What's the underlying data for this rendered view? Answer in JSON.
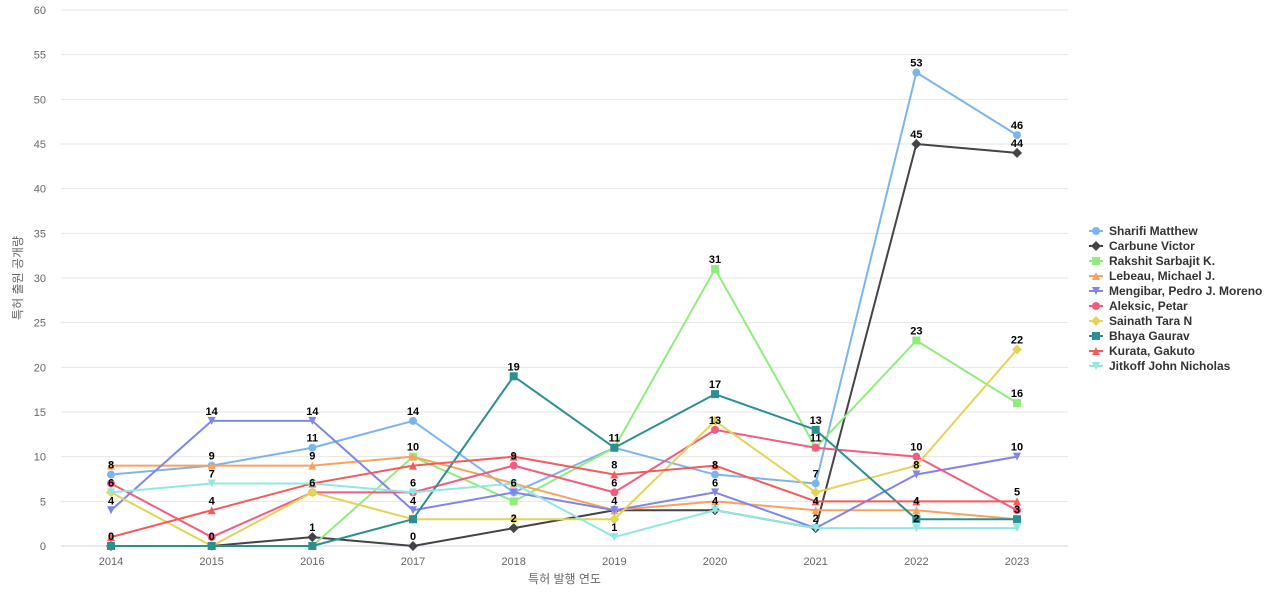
{
  "chart_data": {
    "type": "line",
    "title": "",
    "xlabel": "특허 발행 연도",
    "ylabel": "특허 출원 공개량",
    "x": [
      2014,
      2015,
      2016,
      2017,
      2018,
      2019,
      2020,
      2021,
      2022,
      2023
    ],
    "ylim": [
      0,
      60
    ],
    "yticks": [
      0,
      5,
      10,
      15,
      20,
      25,
      30,
      35,
      40,
      45,
      50,
      55,
      60
    ],
    "grid": true,
    "legend_position": "right",
    "series": [
      {
        "name": "Sharifi Matthew",
        "color": "#7cb5ec",
        "marker": "circle",
        "values": [
          8,
          9,
          11,
          14,
          6,
          11,
          8,
          7,
          53,
          46
        ]
      },
      {
        "name": "Carbune Victor",
        "color": "#434348",
        "marker": "diamond",
        "values": [
          0,
          0,
          1,
          0,
          2,
          4,
          4,
          2,
          45,
          44
        ]
      },
      {
        "name": "Rakshit Sarbajit K.",
        "color": "#90ed7d",
        "marker": "square",
        "values": [
          0,
          0,
          0,
          10,
          5,
          11,
          31,
          11,
          23,
          16
        ]
      },
      {
        "name": "Lebeau, Michael J.",
        "color": "#f7a35c",
        "marker": "triangle",
        "values": [
          9,
          9,
          9,
          10,
          7,
          4,
          5,
          4,
          4,
          3
        ]
      },
      {
        "name": "Mengibar, Pedro J. Moreno",
        "color": "#8085e9",
        "marker": "triangle-down",
        "values": [
          4,
          14,
          14,
          4,
          6,
          4,
          6,
          2,
          8,
          10
        ]
      },
      {
        "name": "Aleksic, Petar",
        "color": "#f15c80",
        "marker": "circle",
        "values": [
          7,
          1,
          6,
          6,
          9,
          6,
          13,
          11,
          10,
          4
        ]
      },
      {
        "name": "Sainath Tara N",
        "color": "#e4d354",
        "marker": "diamond",
        "values": [
          6,
          0,
          6,
          3,
          3,
          3,
          14,
          6,
          9,
          22
        ]
      },
      {
        "name": "Bhaya Gaurav",
        "color": "#2b908f",
        "marker": "square",
        "values": [
          0,
          0,
          0,
          3,
          19,
          11,
          17,
          13,
          3,
          3
        ]
      },
      {
        "name": "Kurata, Gakuto",
        "color": "#f45b5b",
        "marker": "triangle",
        "values": [
          1,
          4,
          7,
          9,
          10,
          8,
          9,
          5,
          5,
          5
        ]
      },
      {
        "name": "Jitkoff John Nicholas",
        "color": "#91e8e1",
        "marker": "triangle-down",
        "values": [
          6,
          7,
          7,
          6,
          7,
          1,
          4,
          2,
          2,
          2
        ]
      }
    ],
    "data_labels": [
      {
        "x": 2014,
        "y": 8,
        "text": "8"
      },
      {
        "x": 2014,
        "y": 6,
        "text": "6"
      },
      {
        "x": 2014,
        "y": 4,
        "text": "4"
      },
      {
        "x": 2014,
        "y": 0,
        "text": "0"
      },
      {
        "x": 2015,
        "y": 14,
        "text": "14"
      },
      {
        "x": 2015,
        "y": 9,
        "text": "9"
      },
      {
        "x": 2015,
        "y": 7,
        "text": "7"
      },
      {
        "x": 2015,
        "y": 4,
        "text": "4"
      },
      {
        "x": 2015,
        "y": 0,
        "text": "0"
      },
      {
        "x": 2016,
        "y": 14,
        "text": "14"
      },
      {
        "x": 2016,
        "y": 11,
        "text": "11"
      },
      {
        "x": 2016,
        "y": 9,
        "text": "9"
      },
      {
        "x": 2016,
        "y": 6,
        "text": "6"
      },
      {
        "x": 2016,
        "y": 1,
        "text": "1"
      },
      {
        "x": 2017,
        "y": 14,
        "text": "14"
      },
      {
        "x": 2017,
        "y": 10,
        "text": "10"
      },
      {
        "x": 2017,
        "y": 6,
        "text": "6"
      },
      {
        "x": 2017,
        "y": 4,
        "text": "4"
      },
      {
        "x": 2017,
        "y": 0,
        "text": "0"
      },
      {
        "x": 2018,
        "y": 19,
        "text": "19"
      },
      {
        "x": 2018,
        "y": 9,
        "text": "9"
      },
      {
        "x": 2018,
        "y": 6,
        "text": "6"
      },
      {
        "x": 2018,
        "y": 2,
        "text": "2"
      },
      {
        "x": 2019,
        "y": 11,
        "text": "11"
      },
      {
        "x": 2019,
        "y": 8,
        "text": "8"
      },
      {
        "x": 2019,
        "y": 6,
        "text": "6"
      },
      {
        "x": 2019,
        "y": 4,
        "text": "4"
      },
      {
        "x": 2019,
        "y": 1,
        "text": "1"
      },
      {
        "x": 2020,
        "y": 31,
        "text": "31"
      },
      {
        "x": 2020,
        "y": 17,
        "text": "17"
      },
      {
        "x": 2020,
        "y": 13,
        "text": "13"
      },
      {
        "x": 2020,
        "y": 8,
        "text": "8"
      },
      {
        "x": 2020,
        "y": 6,
        "text": "6"
      },
      {
        "x": 2020,
        "y": 4,
        "text": "4"
      },
      {
        "x": 2021,
        "y": 13,
        "text": "13"
      },
      {
        "x": 2021,
        "y": 11,
        "text": "11"
      },
      {
        "x": 2021,
        "y": 7,
        "text": "7"
      },
      {
        "x": 2021,
        "y": 4,
        "text": "4"
      },
      {
        "x": 2021,
        "y": 2,
        "text": "2"
      },
      {
        "x": 2022,
        "y": 53,
        "text": "53"
      },
      {
        "x": 2022,
        "y": 45,
        "text": "45"
      },
      {
        "x": 2022,
        "y": 23,
        "text": "23"
      },
      {
        "x": 2022,
        "y": 10,
        "text": "10"
      },
      {
        "x": 2022,
        "y": 8,
        "text": "8"
      },
      {
        "x": 2022,
        "y": 4,
        "text": "4"
      },
      {
        "x": 2022,
        "y": 2,
        "text": "2"
      },
      {
        "x": 2023,
        "y": 46,
        "text": "46"
      },
      {
        "x": 2023,
        "y": 44,
        "text": "44"
      },
      {
        "x": 2023,
        "y": 22,
        "text": "22"
      },
      {
        "x": 2023,
        "y": 16,
        "text": "16"
      },
      {
        "x": 2023,
        "y": 10,
        "text": "10"
      },
      {
        "x": 2023,
        "y": 5,
        "text": "5"
      },
      {
        "x": 2023,
        "y": 3,
        "text": "3"
      }
    ]
  }
}
